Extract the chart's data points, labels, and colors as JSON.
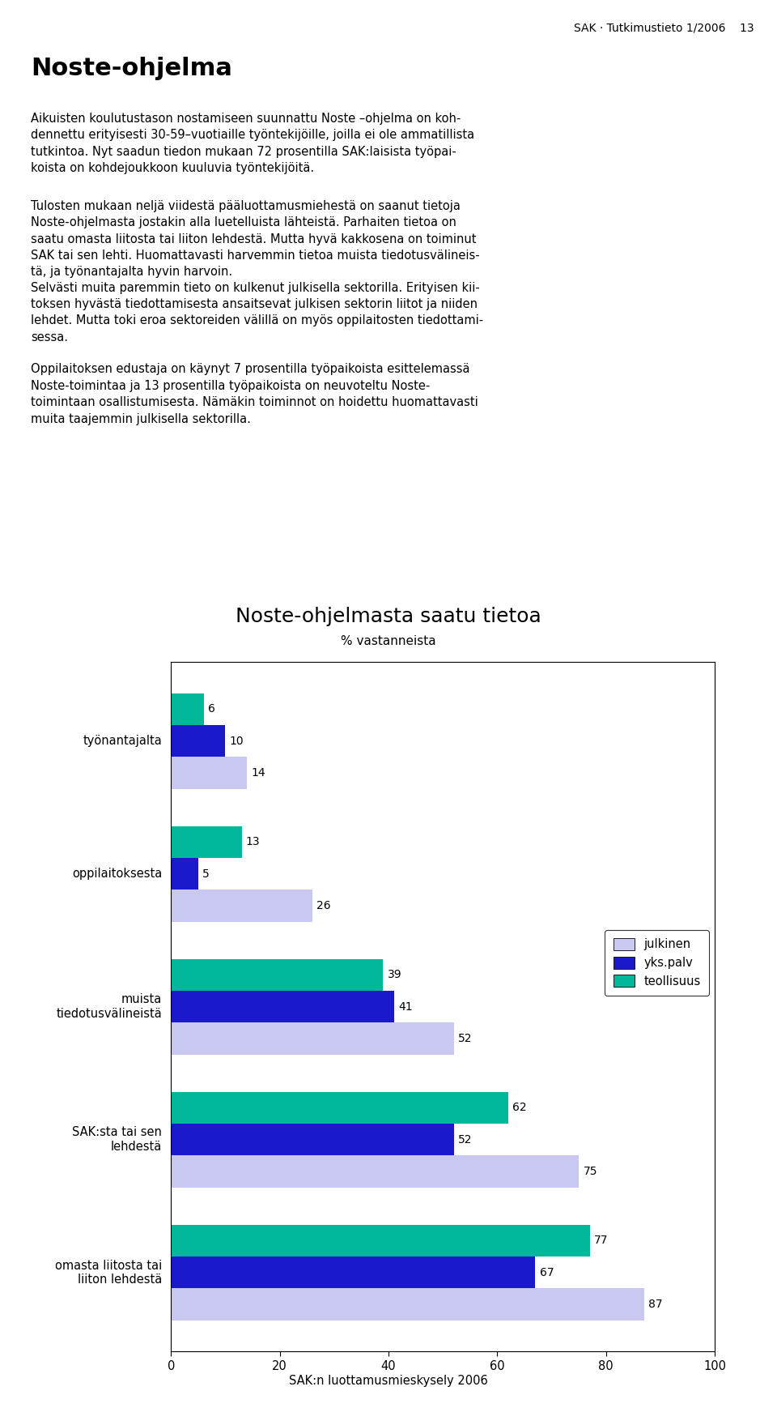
{
  "header": "SAK · Tutkimustieto 1/2006    13",
  "page_title": "Noste-ohjelma",
  "paragraphs": [
    "Aikuisten koulutustason nostamiseen suunnattu Noste –ohjelma on koh-\ndennettu erityisesti 30-59–vuotiaille työntekijöille, joilla ei ole ammatillista\ntutkintoa. Nyt saadun tiedon mukaan 72 prosentilla SAK:laisista työpai-\nkoista on kohdejoukkoon kuuluvia työntekijöitä.",
    "Tulosten mukaan neljä viidestä pääluottamusmiehestä on saanut tietoja\nNoste-ohjelmasta jostakin alla luetelluista lähteistä. Parhaiten tietoa on\nsaatu omasta liitosta tai liiton lehdestä. Mutta hyvä kakkosena on toiminut\nSAK tai sen lehti. Huomattavasti harvemmin tietoa muista tiedotusvälineis-\ntä, ja työnantajalta hyvin harvoin.",
    "Selvästi muita paremmin tieto on kulkenut julkisella sektorilla. Erityisen kii-\ntoksen hyvästä tiedottamisesta ansaitsevat julkisen sektorin liitot ja niiden\nlehdet. Mutta toki eroa sektoreiden välillä on myös oppilaitosten tiedottami-\nsessa.",
    "Oppilaitoksen edustaja on käynyt 7 prosentilla työpaikoista esittelemassä\nNoste-toimintaa ja 13 prosentilla työpaikoista on neuvoteltu Noste-\ntoimintaan osallistumisesta. Nämäkin toiminnot on hoidettu huomattavasti\nmuita taajemmin julkisella sektorilla."
  ],
  "chart_title": "Noste-ohjelmasta saatu tietoa",
  "chart_subtitle": "% vastanneista",
  "footer": "SAK:n luottamusmieskysely 2006",
  "categories": [
    "työnantajalta",
    "oppilaitoksesta",
    "muista\ntiedotusvälineistä",
    "SAK:sta tai sen\nlehdestä",
    "omasta liitosta tai\nliiton lehdestä"
  ],
  "series": {
    "julkinen": [
      14,
      26,
      52,
      75,
      87
    ],
    "yks.palv": [
      10,
      5,
      41,
      52,
      67
    ],
    "teollisuus": [
      6,
      13,
      39,
      62,
      77
    ]
  },
  "colors": {
    "julkinen": "#c8c8f0",
    "yks.palv": "#1a1acc",
    "teollisuus": "#00b899"
  },
  "xlim": [
    0,
    100
  ],
  "xticks": [
    0,
    20,
    40,
    60,
    80,
    100
  ],
  "bar_height": 0.24,
  "background_color": "#ffffff"
}
